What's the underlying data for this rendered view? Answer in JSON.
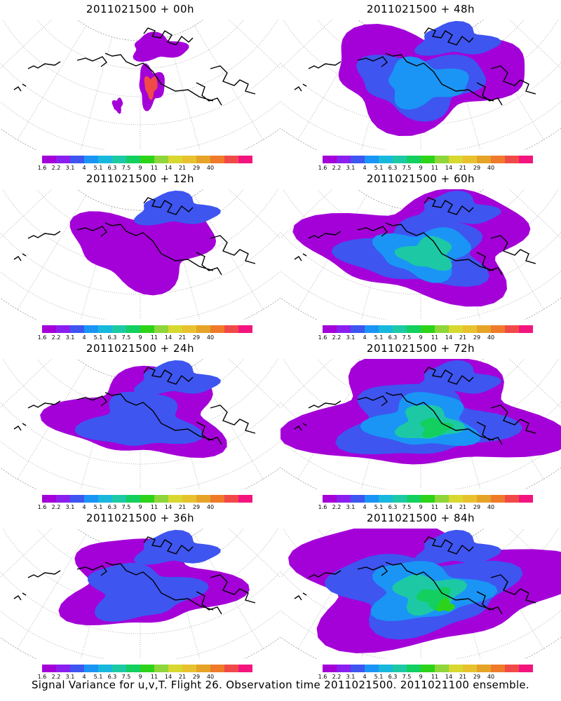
{
  "caption": "Signal Variance for u,v,T. Flight 26. Observation time 2011021500. 2011021100 ensemble.",
  "colorbar": {
    "colors": [
      "#a400d8",
      "#8a1ff0",
      "#3e55f0",
      "#1a95f5",
      "#18b8dc",
      "#1dc9a5",
      "#12cf60",
      "#2dd31b",
      "#8ed63a",
      "#d8d830",
      "#e8c22e",
      "#e5a328",
      "#ef7a2a",
      "#f04a48",
      "#f3157d"
    ],
    "labels": [
      "1.6",
      "2.2",
      "3.1",
      "4",
      "5.1",
      "6.3",
      "7.5",
      "9",
      "11",
      "14",
      "21",
      "29",
      "40"
    ]
  },
  "panels": [
    {
      "title": "2011021500 + 00h",
      "level": 0
    },
    {
      "title": "2011021500 + 48h",
      "level": 3
    },
    {
      "title": "2011021500 + 12h",
      "level": 1
    },
    {
      "title": "2011021500 + 60h",
      "level": 4
    },
    {
      "title": "2011021500 + 24h",
      "level": 2
    },
    {
      "title": "2011021500 + 72h",
      "level": 5
    },
    {
      "title": "2011021500 + 36h",
      "level": 2
    },
    {
      "title": "2011021500 + 84h",
      "level": 6
    }
  ]
}
